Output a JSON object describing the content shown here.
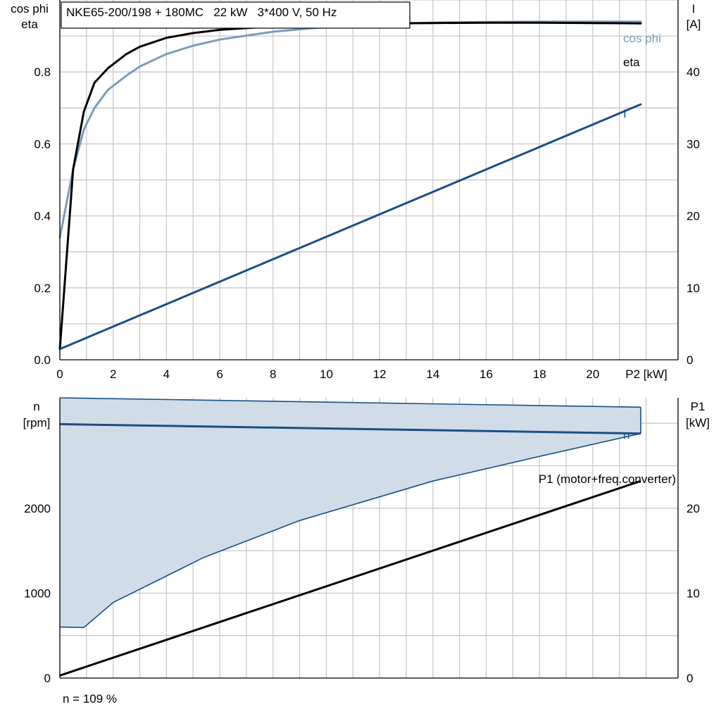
{
  "title": "NKE65-200/198 + 180MC   22 kW   3*400 V, 50 Hz",
  "footer": "n = 109 %",
  "colors": {
    "eta": "#000000",
    "cos_phi": "#7a9cbd",
    "current": "#1a4f85",
    "speed": "#1a4f85",
    "speed_area": "#d0dce8",
    "p1": "#000000",
    "grid": "#c8c8c8"
  },
  "chart_data": [
    {
      "type": "line",
      "x_axis": {
        "label": "P2 [kW]",
        "range": [
          0,
          23.2
        ],
        "ticks": [
          "0",
          "2",
          "4",
          "6",
          "8",
          "10",
          "12",
          "14",
          "16",
          "18",
          "20"
        ]
      },
      "y_left": {
        "label_lines": [
          "cos phi",
          "eta"
        ],
        "range": [
          0,
          1.0
        ],
        "ticks": [
          "0.0",
          "0.2",
          "0.4",
          "0.6",
          "0.8"
        ]
      },
      "y_right": {
        "label_lines": [
          "I",
          "[A]"
        ],
        "range": [
          0,
          50
        ],
        "ticks": [
          "0",
          "10",
          "20",
          "30",
          "40"
        ]
      },
      "series": [
        {
          "name": "eta",
          "axis": "left",
          "x": [
            0,
            0.5,
            0.9,
            1.3,
            1.8,
            2.5,
            3,
            4,
            5,
            6,
            8,
            10,
            12,
            14,
            16,
            18,
            20,
            21.8
          ],
          "y": [
            0.03,
            0.53,
            0.69,
            0.77,
            0.81,
            0.85,
            0.87,
            0.895,
            0.908,
            0.917,
            0.927,
            0.932,
            0.935,
            0.936,
            0.937,
            0.937,
            0.936,
            0.935
          ]
        },
        {
          "name": "cos phi",
          "axis": "left",
          "x": [
            0,
            0.5,
            0.9,
            1.3,
            1.8,
            2.5,
            3,
            4,
            5,
            6,
            8,
            10,
            12,
            14,
            16,
            18,
            20,
            21.8
          ],
          "y": [
            0.34,
            0.53,
            0.64,
            0.7,
            0.75,
            0.79,
            0.815,
            0.85,
            0.873,
            0.89,
            0.912,
            0.925,
            0.933,
            0.937,
            0.939,
            0.94,
            0.94,
            0.94
          ]
        },
        {
          "name": "I",
          "axis": "right",
          "x": [
            0,
            21.8
          ],
          "y": [
            1.5,
            35.5
          ]
        }
      ]
    },
    {
      "type": "area",
      "x_axis": {
        "range": [
          0,
          23.2
        ]
      },
      "y_left": {
        "label_lines": [
          "n",
          "[rpm]"
        ],
        "range": [
          0,
          3300
        ],
        "ticks": [
          "0",
          "1000",
          "2000"
        ]
      },
      "y_right": {
        "label_lines": [
          "P1",
          "[kW]"
        ],
        "range": [
          0,
          33
        ],
        "ticks": [
          "0",
          "10",
          "20"
        ]
      },
      "series": [
        {
          "name": "n",
          "axis": "left",
          "x": [
            0,
            21.8
          ],
          "y": [
            2990,
            2880
          ]
        },
        {
          "name": "P1 (motor+freq.converter)",
          "axis": "right",
          "x": [
            0,
            21.8
          ],
          "y": [
            0.3,
            23.2
          ]
        }
      ],
      "speed_range": {
        "axis": "left",
        "upper": {
          "x": [
            0,
            21.8
          ],
          "y": [
            3300,
            3190
          ]
        },
        "lower": {
          "x": [
            0,
            0.9,
            2,
            5.4,
            9,
            14,
            18,
            21.8
          ],
          "y": [
            600,
            595,
            890,
            1420,
            1855,
            2320,
            2610,
            2880
          ]
        }
      }
    }
  ]
}
